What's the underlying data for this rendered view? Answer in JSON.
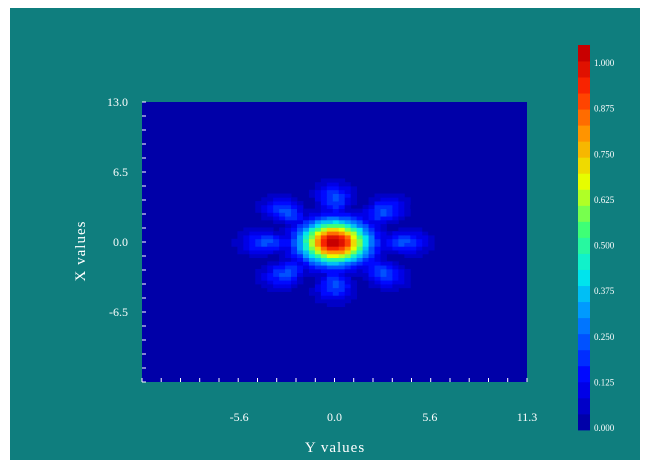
{
  "chart_data": {
    "type": "heatmap",
    "title": "",
    "xlabel": "Y values",
    "ylabel": "X values",
    "x_ticks": [
      "-5.6",
      "0.0",
      "5.6",
      "11.3"
    ],
    "x_tick_values": [
      -5.6,
      0.0,
      5.6,
      11.3
    ],
    "y_ticks": [
      "13.0",
      "6.5",
      "0.0",
      "-6.5"
    ],
    "y_tick_values": [
      13.0,
      6.5,
      0.0,
      -6.5
    ],
    "xlim": [
      -11.3,
      11.3
    ],
    "ylim": [
      -13.0,
      13.0
    ],
    "colorbar": {
      "min": 0.0,
      "max": 1.0,
      "ticks": [
        "1.000",
        "0.875",
        "0.750",
        "0.625",
        "0.500",
        "0.375",
        "0.250",
        "0.125",
        "0.000"
      ],
      "tick_values": [
        1.0,
        0.875,
        0.75,
        0.625,
        0.5,
        0.375,
        0.25,
        0.125,
        0.0
      ],
      "levels": 24
    },
    "peak": {
      "x": 0.0,
      "y": 0.0,
      "value": 1.0
    },
    "central_spot_radius": 1.8,
    "side_lobe": {
      "radius": 4.0,
      "lobes": 8,
      "value": 0.22
    },
    "grid": false,
    "legend": "colorbar-right"
  },
  "colors": {
    "background": "#0f7e7e",
    "plot_min": "#0000a8",
    "text": "#ffffff"
  }
}
